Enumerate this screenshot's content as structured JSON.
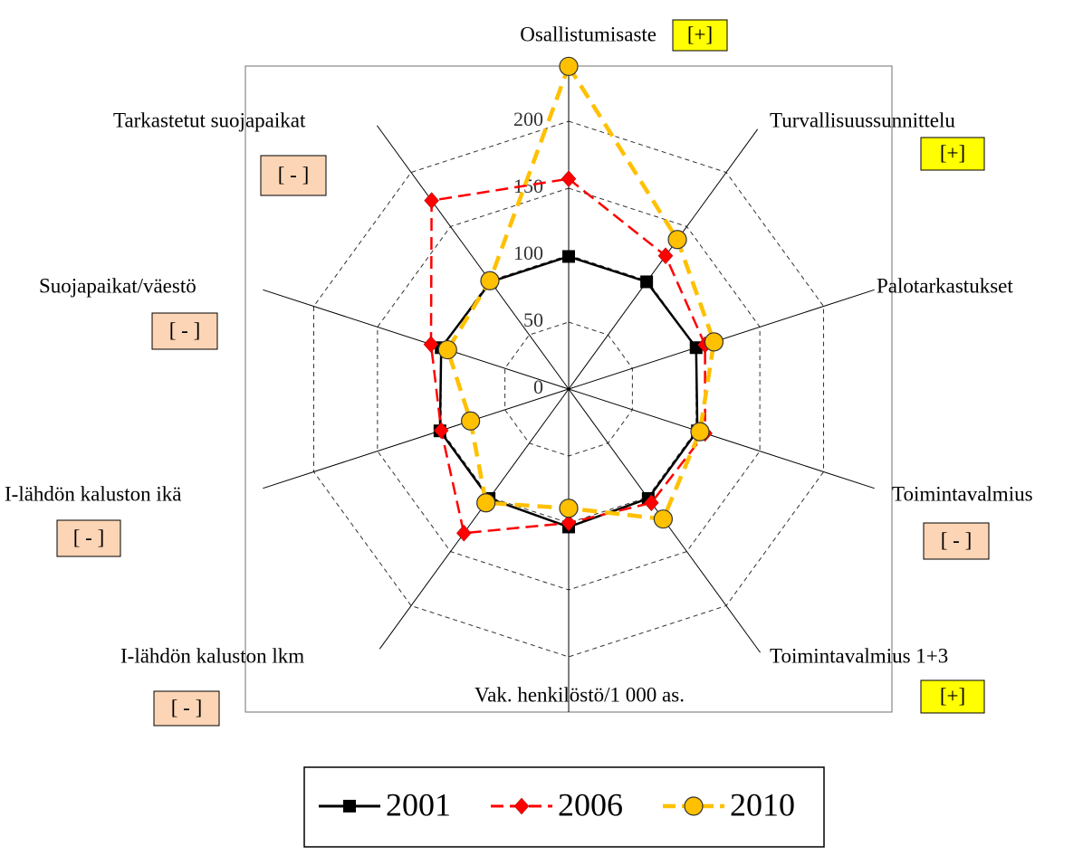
{
  "chart_data": {
    "type": "radar",
    "categories": [
      "Osallistumisaste",
      "Turvallisuussunnittelu",
      "Palotarkastukset",
      "Toimintavalmius",
      "Toimintavalmius 1+3",
      "Vak. henkilöstö/1 000 as.",
      "I-lähdön kaluston lkm",
      "I-lähdön kaluston ikä",
      "Suojapaikat/väestö",
      "Tarkastetut suojapaikat"
    ],
    "badges": [
      "[+]",
      "[+]",
      null,
      "[ - ]",
      "[+]",
      null,
      "[ - ]",
      "[ - ]",
      "[ - ]",
      "[ - ]"
    ],
    "badge_colors": {
      "[+]": "#ffff00",
      "[ - ]": "#fbd5b5"
    },
    "ylim": [
      0,
      250
    ],
    "yticks": [
      0,
      50,
      100,
      150,
      200
    ],
    "grid": true,
    "series": [
      {
        "name": "2001",
        "color": "#000000",
        "marker": "square",
        "dashed": false,
        "values": [
          99,
          99,
          100,
          101,
          101,
          103,
          101,
          101,
          100,
          99
        ]
      },
      {
        "name": "2006",
        "color": "#ff0000",
        "marker": "diamond",
        "dashed": true,
        "values": [
          157,
          123,
          107,
          107,
          105,
          100,
          133,
          100,
          108,
          174
        ]
      },
      {
        "name": "2010",
        "color": "#ffc000",
        "marker": "circle",
        "dashed": true,
        "values": [
          241,
          138,
          114,
          103,
          120,
          89,
          105,
          77,
          95,
          100
        ]
      }
    ]
  }
}
